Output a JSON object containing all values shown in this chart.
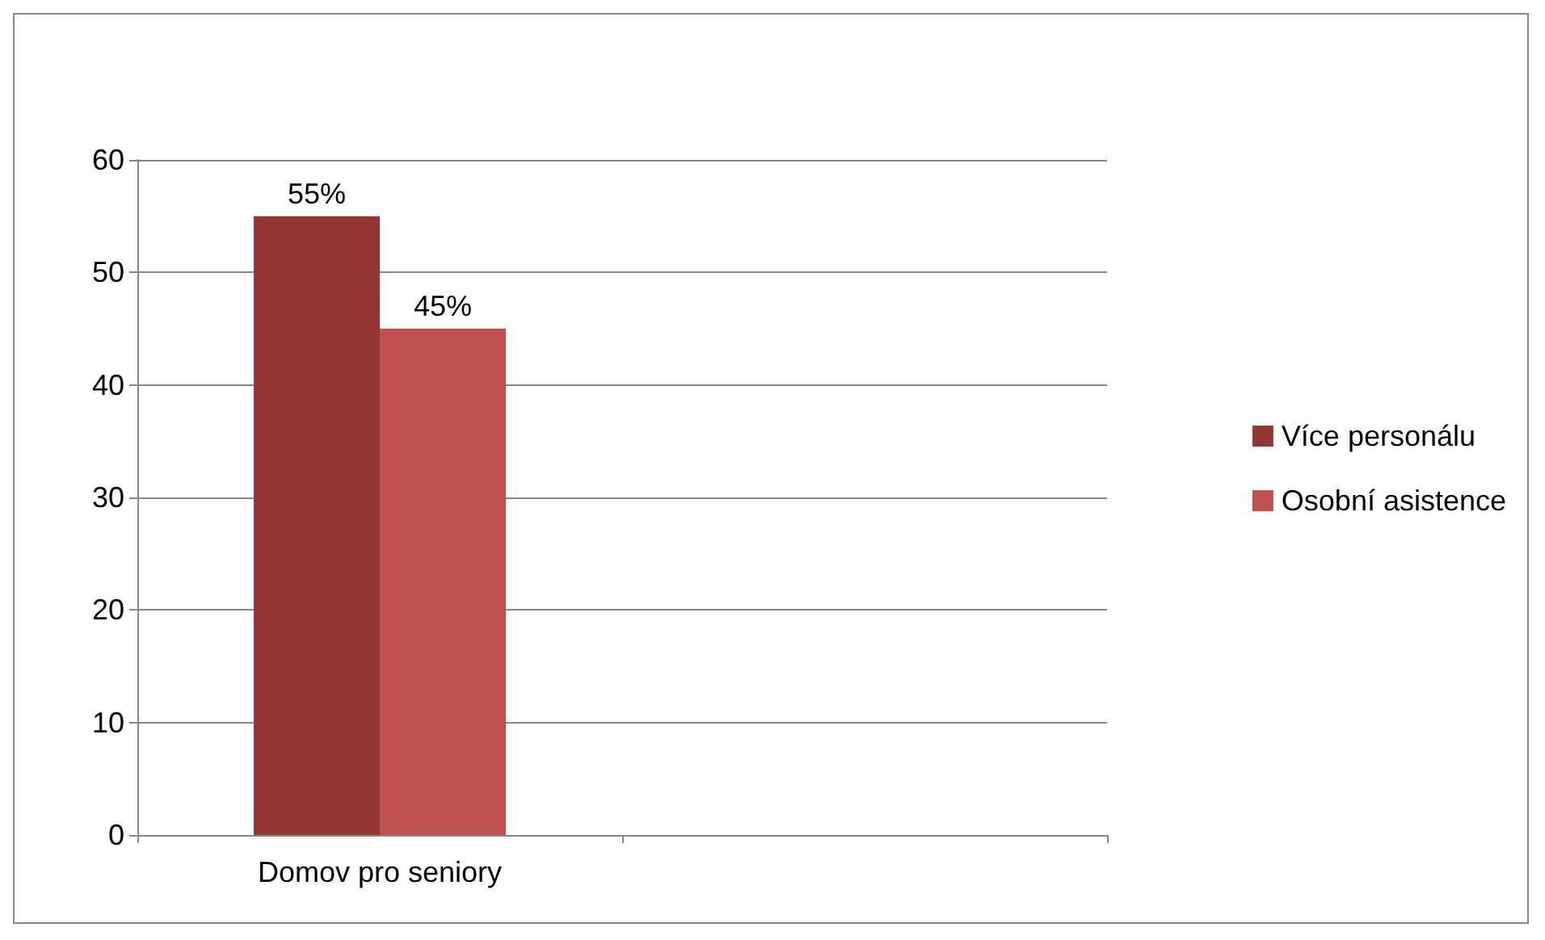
{
  "chart_data": {
    "type": "bar",
    "categories": [
      "Domov pro seniory",
      null
    ],
    "series": [
      {
        "name": "Více personálu",
        "color": "#943634",
        "values": [
          55,
          null
        ],
        "value_labels": [
          "55%",
          null
        ]
      },
      {
        "name": "Osobní asistence",
        "color": "#c0504d",
        "values": [
          45,
          null
        ],
        "value_labels": [
          "45%",
          null
        ]
      }
    ],
    "ylim": [
      0,
      60
    ],
    "yticks": [
      0,
      10,
      20,
      30,
      40,
      50,
      60
    ],
    "grid": "y",
    "legend": "right"
  }
}
